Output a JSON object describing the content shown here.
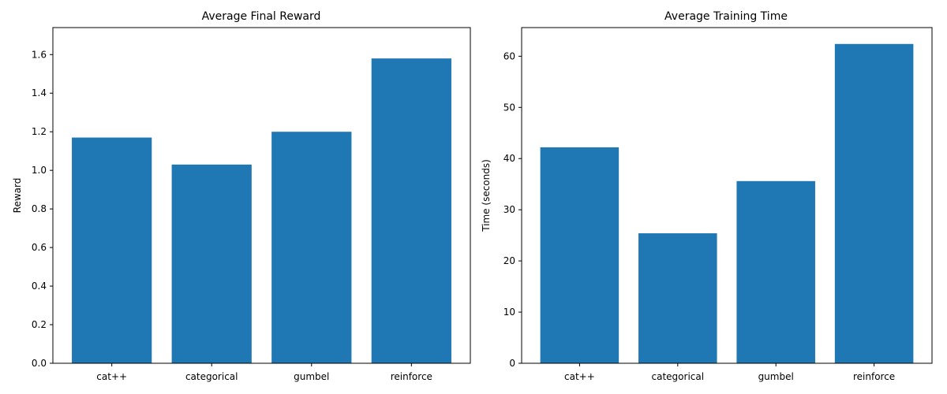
{
  "chart_data": [
    {
      "type": "bar",
      "title": "Average Final Reward",
      "xlabel": "",
      "ylabel": "Reward",
      "categories": [
        "cat++",
        "categorical",
        "gumbel",
        "reinforce"
      ],
      "values": [
        1.17,
        1.03,
        1.2,
        1.58
      ],
      "ylim": [
        0,
        1.74
      ],
      "yticks": [
        0.0,
        0.2,
        0.4,
        0.6,
        0.8,
        1.0,
        1.2,
        1.4,
        1.6
      ],
      "ytick_labels": [
        "0.0",
        "0.2",
        "0.4",
        "0.6",
        "0.8",
        "1.0",
        "1.2",
        "1.4",
        "1.6"
      ],
      "bar_color": "#1f77b4",
      "grid": false
    },
    {
      "type": "bar",
      "title": "Average Training Time",
      "xlabel": "",
      "ylabel": "Time (seconds)",
      "categories": [
        "cat++",
        "categorical",
        "gumbel",
        "reinforce"
      ],
      "values": [
        42.2,
        25.4,
        35.6,
        62.4
      ],
      "ylim": [
        0,
        65.6
      ],
      "yticks": [
        0,
        10,
        20,
        30,
        40,
        50,
        60
      ],
      "ytick_labels": [
        "0",
        "10",
        "20",
        "30",
        "40",
        "50",
        "60"
      ],
      "bar_color": "#1f77b4",
      "grid": false
    }
  ]
}
